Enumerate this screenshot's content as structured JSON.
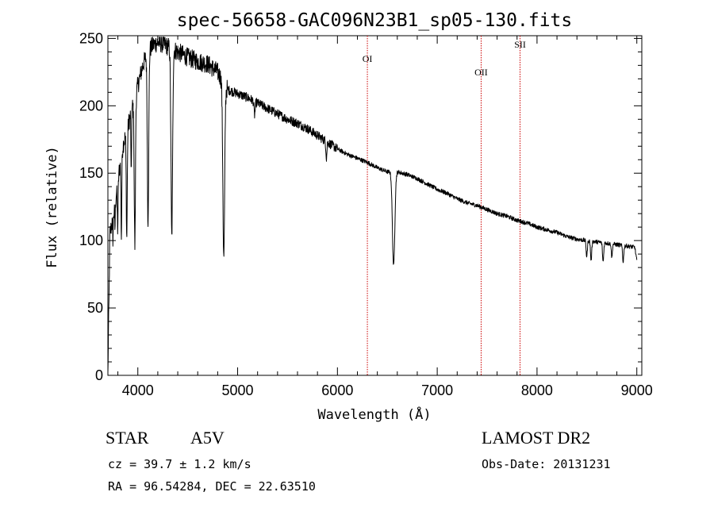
{
  "chart_data": {
    "type": "line",
    "title": "spec-56658-GAC096N23B1_sp05-130.fits",
    "xlabel": "Wavelength (Å)",
    "ylabel": "Flux (relative)",
    "xlim": [
      3700,
      9050
    ],
    "ylim": [
      0,
      252
    ],
    "x_ticks": [
      4000,
      5000,
      6000,
      7000,
      8000,
      9000
    ],
    "y_ticks": [
      0,
      50,
      100,
      150,
      200,
      250
    ],
    "continuum": {
      "x": [
        3700,
        3720,
        3760,
        3800,
        3850,
        3900,
        3950,
        4000,
        4050,
        4100,
        4150,
        4200,
        4250,
        4300,
        4400,
        4500,
        4600,
        4700,
        4800,
        4900,
        5000,
        5100,
        5200,
        5300,
        5400,
        5500,
        5600,
        5700,
        5800,
        5900,
        6000,
        6100,
        6200,
        6300,
        6400,
        6500,
        6600,
        6700,
        6800,
        6900,
        7000,
        7100,
        7200,
        7300,
        7400,
        7500,
        7600,
        7700,
        7800,
        7900,
        8000,
        8100,
        8200,
        8300,
        8400,
        8500,
        8600,
        8700,
        8800,
        8900,
        8980,
        9000
      ],
      "y": [
        0,
        105,
        120,
        145,
        170,
        185,
        200,
        215,
        230,
        240,
        245,
        247,
        246,
        244,
        240,
        236,
        233,
        231,
        225,
        212,
        209,
        206,
        202,
        198,
        194,
        190,
        187,
        183,
        178,
        173,
        168,
        164,
        161,
        158,
        154,
        151,
        151,
        149,
        146,
        142,
        138,
        135,
        131,
        128,
        126,
        123,
        120,
        118,
        115,
        113,
        110,
        108,
        106,
        103,
        101,
        100,
        99,
        98,
        97,
        96,
        95,
        85
      ]
    },
    "absorption_lines": [
      {
        "x": 3750,
        "depth": 15,
        "width": 3
      },
      {
        "x": 3771,
        "depth": 18,
        "width": 3
      },
      {
        "x": 3798,
        "depth": 35,
        "width": 4
      },
      {
        "x": 3835,
        "depth": 60,
        "width": 4
      },
      {
        "x": 3889,
        "depth": 80,
        "width": 5
      },
      {
        "x": 3934,
        "depth": 50,
        "width": 3
      },
      {
        "x": 3970,
        "depth": 110,
        "width": 6
      },
      {
        "x": 4102,
        "depth": 125,
        "width": 7
      },
      {
        "x": 4340,
        "depth": 140,
        "width": 8
      },
      {
        "x": 4861,
        "depth": 130,
        "width": 9
      },
      {
        "x": 5170,
        "depth": 10,
        "width": 6
      },
      {
        "x": 5890,
        "depth": 12,
        "width": 5
      },
      {
        "x": 6563,
        "depth": 70,
        "width": 12
      },
      {
        "x": 8498,
        "depth": 12,
        "width": 6
      },
      {
        "x": 8542,
        "depth": 14,
        "width": 6
      },
      {
        "x": 8662,
        "depth": 14,
        "width": 6
      },
      {
        "x": 8750,
        "depth": 10,
        "width": 5
      },
      {
        "x": 8863,
        "depth": 12,
        "width": 6
      }
    ],
    "markers": [
      {
        "label": "OI",
        "x": 6300
      },
      {
        "label": "OII",
        "x": 7440
      },
      {
        "label": "SII",
        "x": 7830
      }
    ],
    "marker_color": "#cc0000"
  },
  "info": {
    "class_label": "STAR",
    "subclass": "A5V",
    "cz": "cz = 39.7 ± 1.2 km/s",
    "coords": "RA =  96.54284, DEC =  22.63510",
    "survey": "LAMOST DR2",
    "obs_date": "Obs-Date: 20131231"
  }
}
